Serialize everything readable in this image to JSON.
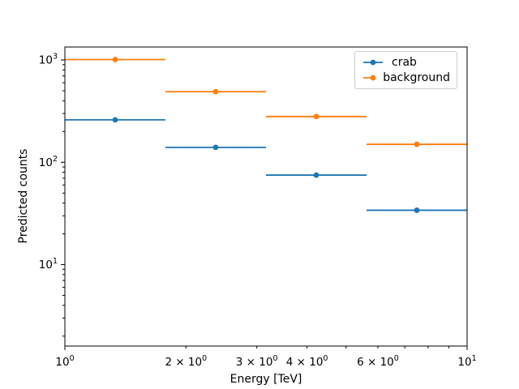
{
  "figure": {
    "background": "#ffffff",
    "text_color": "#000000",
    "frame_color": "#000000"
  },
  "chart_data": {
    "type": "errorbar",
    "title": "",
    "xlabel": "Energy [TeV]",
    "ylabel": "Predicted counts",
    "xscale": "log",
    "yscale": "log",
    "xlim": [
      1.0,
      10.0
    ],
    "ylim": [
      1.6,
      1340
    ],
    "grid": false,
    "legend_position": "upper right",
    "bin_edges": [
      1.0,
      1.778,
      3.162,
      5.623,
      10.0
    ],
    "bin_centers": [
      1.334,
      2.371,
      4.217,
      7.499
    ],
    "series": [
      {
        "name": "crab",
        "color": "#1f77b4",
        "values": [
          260,
          140,
          75,
          34
        ]
      },
      {
        "name": "background",
        "color": "#ff7f0e",
        "values": [
          1010,
          490,
          280,
          150
        ]
      }
    ],
    "x_ticks": [
      {
        "v": 1,
        "major": true,
        "label_main": "10",
        "label_exp": "0"
      },
      {
        "v": 2,
        "major": false,
        "label_main": "2 × 10",
        "label_exp": "0"
      },
      {
        "v": 3,
        "major": false,
        "label_main": "3 × 10",
        "label_exp": "0"
      },
      {
        "v": 4,
        "major": false,
        "label_main": "4 × 10",
        "label_exp": "0"
      },
      {
        "v": 5,
        "major": false
      },
      {
        "v": 6,
        "major": false,
        "label_main": "6 × 10",
        "label_exp": "0"
      },
      {
        "v": 7,
        "major": false
      },
      {
        "v": 8,
        "major": false
      },
      {
        "v": 9,
        "major": false
      },
      {
        "v": 10,
        "major": true,
        "label_main": "10",
        "label_exp": "1"
      }
    ],
    "y_ticks": [
      {
        "v": 1000,
        "label_main": "10",
        "label_exp": "3"
      },
      {
        "v": 100,
        "label_main": "10",
        "label_exp": "2"
      },
      {
        "v": 10,
        "label_main": "10",
        "label_exp": "1"
      }
    ],
    "y_minor_ticks": [
      2,
      3,
      4,
      5,
      6,
      7,
      8,
      9,
      20,
      30,
      40,
      50,
      60,
      70,
      80,
      90,
      200,
      300,
      400,
      500,
      600,
      700,
      800,
      900
    ]
  }
}
